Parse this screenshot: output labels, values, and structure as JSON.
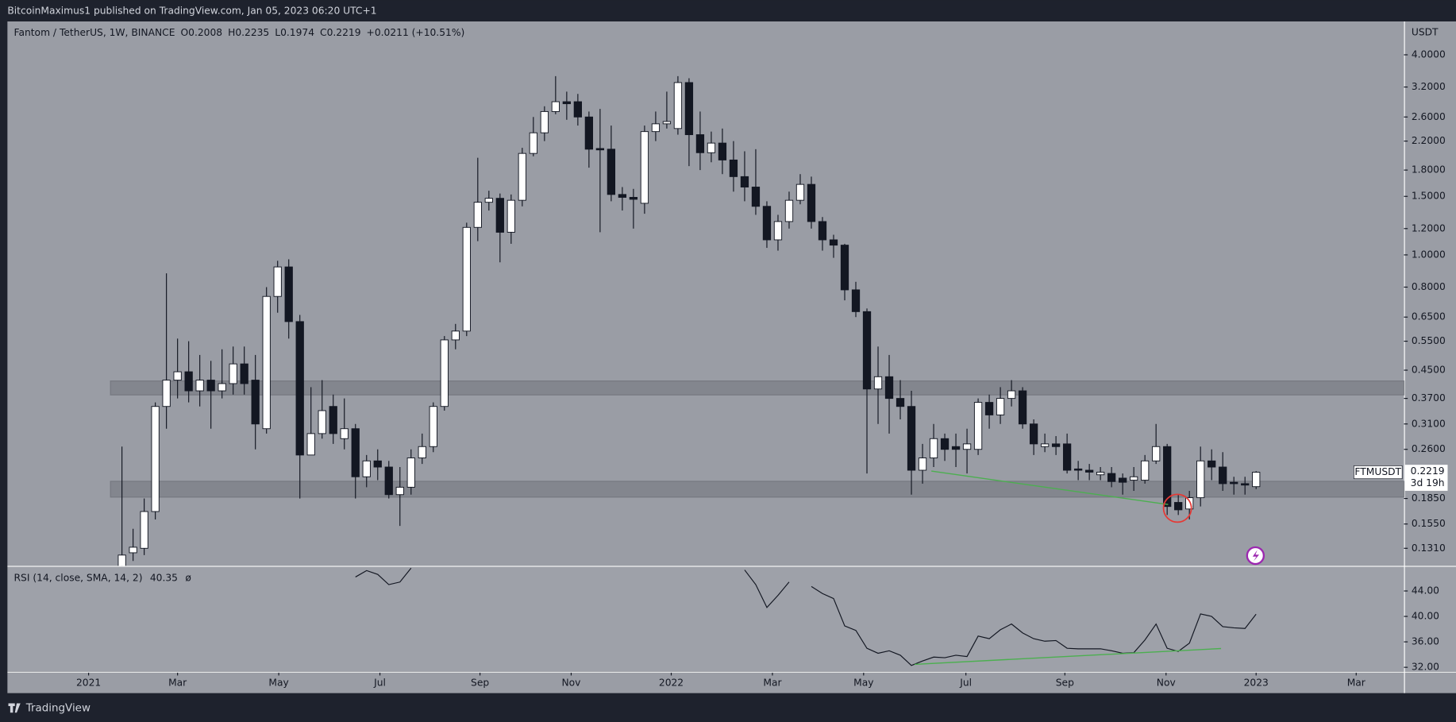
{
  "header": {
    "published": "BitcoinMaximus1 published on TradingView.com, Jan 05, 2023 06:20 UTC+1",
    "brand": "TradingView"
  },
  "chart_data": [
    {
      "type": "candlestick",
      "title": "Fantom / TetherUS, 1W, BINANCE",
      "ohlc_labels": [
        "O",
        "H",
        "L",
        "C"
      ],
      "change": "+0.0211 (+10.51%)",
      "y_axis_label": "USDT",
      "symbol": "FTMUSDT",
      "countdown": "3d 19h",
      "log_scale": true,
      "grid": false,
      "up_color": "#ffffff",
      "down_color": "#131722",
      "open": [
        0.115,
        0.127,
        0.131,
        0.169,
        0.35,
        0.42,
        0.445,
        0.39,
        0.42,
        0.39,
        0.41,
        0.47,
        0.42,
        0.3,
        0.75,
        0.92,
        0.63,
        0.25,
        0.29,
        0.35,
        0.28,
        0.3,
        0.215,
        0.24,
        0.23,
        0.19,
        0.2,
        0.245,
        0.265,
        0.35,
        0.555,
        0.59,
        1.21,
        1.44,
        1.48,
        1.17,
        1.46,
        2.02,
        2.33,
        2.7,
        2.89,
        2.89,
        2.6,
        2.09,
        2.08,
        1.52,
        1.49,
        1.43,
        2.35,
        2.48,
        2.4,
        3.3,
        2.3,
        2.03,
        2.17,
        1.93,
        1.72,
        1.6,
        1.4,
        1.11,
        1.26,
        1.46,
        1.63,
        1.26,
        1.11,
        1.07,
        0.785,
        0.675,
        0.395,
        0.43,
        0.37,
        0.35,
        0.225,
        0.245,
        0.28,
        0.265,
        0.26,
        0.26,
        0.36,
        0.33,
        0.37,
        0.39,
        0.31,
        0.265,
        0.27,
        0.27,
        0.227,
        0.225,
        0.218,
        0.22,
        0.213,
        0.21,
        0.21,
        0.24,
        0.265,
        0.18,
        0.172,
        0.186,
        0.24,
        0.23,
        0.207,
        0.205,
        0.2008
      ],
      "high": [
        0.265,
        0.15,
        0.185,
        0.36,
        0.88,
        0.56,
        0.55,
        0.5,
        0.48,
        0.52,
        0.53,
        0.53,
        0.5,
        0.8,
        0.96,
        0.97,
        0.66,
        0.4,
        0.42,
        0.38,
        0.37,
        0.31,
        0.25,
        0.26,
        0.24,
        0.23,
        0.26,
        0.29,
        0.36,
        0.57,
        0.62,
        1.25,
        1.96,
        1.56,
        1.53,
        1.52,
        2.1,
        2.6,
        2.8,
        3.45,
        3.1,
        3.05,
        2.7,
        2.75,
        2.45,
        1.6,
        1.58,
        2.45,
        2.7,
        3.1,
        3.45,
        3.4,
        2.7,
        2.35,
        2.4,
        2.2,
        2.05,
        2.08,
        1.45,
        1.32,
        1.55,
        1.75,
        1.72,
        1.3,
        1.15,
        1.08,
        0.83,
        0.69,
        0.53,
        0.5,
        0.42,
        0.39,
        0.27,
        0.31,
        0.29,
        0.29,
        0.3,
        0.37,
        0.38,
        0.4,
        0.42,
        0.4,
        0.32,
        0.29,
        0.285,
        0.29,
        0.24,
        0.235,
        0.23,
        0.23,
        0.22,
        0.23,
        0.25,
        0.31,
        0.27,
        0.19,
        0.195,
        0.265,
        0.26,
        0.255,
        0.215,
        0.215,
        0.2235
      ],
      "low": [
        0.11,
        0.12,
        0.125,
        0.16,
        0.3,
        0.37,
        0.36,
        0.35,
        0.3,
        0.37,
        0.38,
        0.38,
        0.26,
        0.29,
        0.67,
        0.56,
        0.185,
        0.25,
        0.28,
        0.27,
        0.26,
        0.185,
        0.2,
        0.21,
        0.185,
        0.153,
        0.19,
        0.235,
        0.255,
        0.34,
        0.52,
        0.57,
        1.1,
        1.36,
        0.95,
        1.08,
        1.4,
        1.98,
        2.2,
        2.65,
        2.55,
        2.45,
        1.83,
        1.17,
        1.45,
        1.36,
        1.2,
        1.33,
        2.2,
        2.4,
        2.3,
        1.85,
        1.8,
        1.9,
        1.75,
        1.55,
        1.45,
        1.32,
        1.05,
        1.03,
        1.2,
        1.42,
        1.2,
        1.03,
        0.98,
        0.73,
        0.65,
        0.22,
        0.31,
        0.29,
        0.32,
        0.19,
        0.205,
        0.23,
        0.24,
        0.23,
        0.22,
        0.25,
        0.3,
        0.31,
        0.35,
        0.3,
        0.25,
        0.255,
        0.25,
        0.22,
        0.21,
        0.21,
        0.21,
        0.2,
        0.19,
        0.195,
        0.205,
        0.235,
        0.165,
        0.165,
        0.16,
        0.175,
        0.21,
        0.195,
        0.19,
        0.19,
        0.1974
      ],
      "close": [
        0.125,
        0.132,
        0.169,
        0.35,
        0.42,
        0.445,
        0.39,
        0.42,
        0.39,
        0.41,
        0.47,
        0.41,
        0.31,
        0.75,
        0.92,
        0.63,
        0.25,
        0.29,
        0.34,
        0.29,
        0.3,
        0.215,
        0.24,
        0.23,
        0.19,
        0.2,
        0.245,
        0.265,
        0.35,
        0.555,
        0.59,
        1.21,
        1.44,
        1.48,
        1.17,
        1.46,
        2.02,
        2.33,
        2.7,
        2.89,
        2.85,
        2.6,
        2.08,
        2.07,
        1.52,
        1.49,
        1.47,
        2.35,
        2.48,
        2.52,
        3.3,
        2.3,
        2.03,
        2.17,
        1.93,
        1.72,
        1.6,
        1.4,
        1.11,
        1.26,
        1.46,
        1.63,
        1.26,
        1.11,
        1.07,
        0.785,
        0.675,
        0.395,
        0.43,
        0.37,
        0.35,
        0.225,
        0.245,
        0.28,
        0.26,
        0.26,
        0.27,
        0.36,
        0.33,
        0.37,
        0.39,
        0.31,
        0.27,
        0.27,
        0.265,
        0.225,
        0.225,
        0.222,
        0.222,
        0.208,
        0.207,
        0.215,
        0.24,
        0.265,
        0.175,
        0.171,
        0.186,
        0.24,
        0.23,
        0.205,
        0.205,
        0.203,
        0.2219
      ],
      "xlim": [
        -10.3,
        115.3
      ],
      "xticks": [
        {
          "value": -3.0,
          "label": "2021"
        },
        {
          "value": 5.0,
          "label": "Mar"
        },
        {
          "value": 14.1,
          "label": "May"
        },
        {
          "value": 23.2,
          "label": "Jul"
        },
        {
          "value": 32.2,
          "label": "Sep"
        },
        {
          "value": 40.4,
          "label": "Nov"
        },
        {
          "value": 49.4,
          "label": "2022"
        },
        {
          "value": 58.5,
          "label": "Mar"
        },
        {
          "value": 66.7,
          "label": "May"
        },
        {
          "value": 75.9,
          "label": "Jul"
        },
        {
          "value": 84.8,
          "label": "Sep"
        },
        {
          "value": 93.9,
          "label": "Nov"
        },
        {
          "value": 102.0,
          "label": "2023"
        },
        {
          "value": 111.0,
          "label": "Mar"
        }
      ],
      "ylim": [
        0.116,
        5.04
      ],
      "yticks": [
        {
          "value": 4,
          "label": "4.0000"
        },
        {
          "value": 3.2,
          "label": "3.2000"
        },
        {
          "value": 2.6,
          "label": "2.6000"
        },
        {
          "value": 2.2,
          "label": "2.2000"
        },
        {
          "value": 1.8,
          "label": "1.8000"
        },
        {
          "value": 1.5,
          "label": "1.5000"
        },
        {
          "value": 1.2,
          "label": "1.2000"
        },
        {
          "value": 1,
          "label": "1.0000"
        },
        {
          "value": 0.8,
          "label": "0.8000"
        },
        {
          "value": 0.65,
          "label": "0.6500"
        },
        {
          "value": 0.55,
          "label": "0.5500"
        },
        {
          "value": 0.45,
          "label": "0.4500"
        },
        {
          "value": 0.37,
          "label": "0.3700"
        },
        {
          "value": 0.31,
          "label": "0.3100"
        },
        {
          "value": 0.26,
          "label": "0.2600"
        },
        {
          "value": 0.185,
          "label": "0.1850"
        },
        {
          "value": 0.155,
          "label": "0.1550"
        },
        {
          "value": 0.131,
          "label": "0.1310"
        }
      ]
    },
    {
      "type": "line",
      "visibility_icon": "ø",
      "grid": false,
      "series": [
        {
          "name": "RSI (14, close, SMA, 14, 2)",
          "color": "#131722",
          "values": [
            null,
            null,
            null,
            null,
            null,
            null,
            null,
            null,
            null,
            null,
            null,
            null,
            null,
            null,
            null,
            null,
            null,
            null,
            null,
            null,
            null,
            46.2,
            47.2,
            46.6,
            45.0,
            45.4,
            47.6,
            null,
            null,
            null,
            null,
            null,
            null,
            null,
            null,
            null,
            null,
            null,
            null,
            null,
            null,
            null,
            null,
            null,
            null,
            null,
            null,
            null,
            null,
            null,
            null,
            null,
            null,
            null,
            null,
            null,
            47.3,
            45.0,
            41.4,
            43.3,
            45.4,
            null,
            44.7,
            43.6,
            42.8,
            38.5,
            37.8,
            35.0,
            34.2,
            34.6,
            33.9,
            32.3,
            33.0,
            33.6,
            33.5,
            33.9,
            33.7,
            36.9,
            36.5,
            37.9,
            38.8,
            37.4,
            36.5,
            36.1,
            36.2,
            35.0,
            34.9,
            34.9,
            34.9,
            34.6,
            34.2,
            34.3,
            36.3,
            38.8,
            35.0,
            34.5,
            35.8,
            40.4,
            40.0,
            38.4,
            38.2,
            38.1,
            40.35
          ]
        }
      ],
      "ylim": [
        31.3,
        47.8
      ],
      "yticks": [
        {
          "value": 44,
          "label": "44.00"
        },
        {
          "value": 40,
          "label": "40.00"
        },
        {
          "value": 36,
          "label": "36.00"
        },
        {
          "value": 32,
          "label": "32.00"
        }
      ]
    }
  ]
}
